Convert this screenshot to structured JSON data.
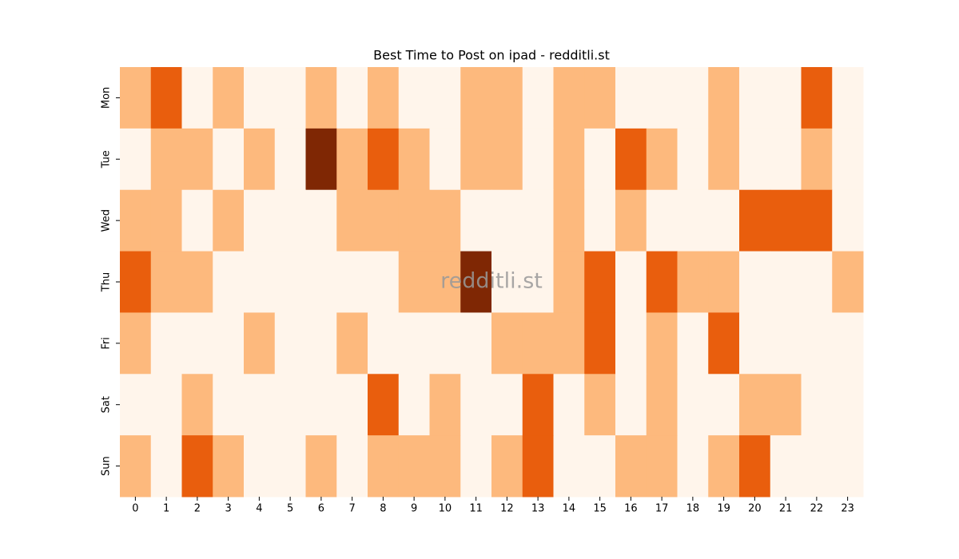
{
  "chart_data": {
    "type": "heatmap",
    "title": "Best Time to Post on ipad - redditli.st",
    "watermark": "redditli.st",
    "x_categories": [
      "0",
      "1",
      "2",
      "3",
      "4",
      "5",
      "6",
      "7",
      "8",
      "9",
      "10",
      "11",
      "12",
      "13",
      "14",
      "15",
      "16",
      "17",
      "18",
      "19",
      "20",
      "21",
      "22",
      "23"
    ],
    "y_categories": [
      "Mon",
      "Tue",
      "Wed",
      "Thu",
      "Fri",
      "Sat",
      "Sun"
    ],
    "values": [
      [
        1,
        2,
        0,
        1,
        0,
        0,
        1,
        0,
        1,
        0,
        0,
        1,
        1,
        0,
        1,
        1,
        0,
        0,
        0,
        1,
        0,
        0,
        2,
        0
      ],
      [
        0,
        1,
        1,
        0,
        1,
        0,
        3,
        1,
        2,
        1,
        0,
        1,
        1,
        0,
        1,
        0,
        2,
        1,
        0,
        1,
        0,
        0,
        1,
        0
      ],
      [
        1,
        1,
        0,
        1,
        0,
        0,
        0,
        1,
        1,
        1,
        1,
        0,
        0,
        0,
        1,
        0,
        1,
        0,
        0,
        0,
        2,
        2,
        2,
        0
      ],
      [
        2,
        1,
        1,
        0,
        0,
        0,
        0,
        0,
        0,
        1,
        1,
        3,
        0,
        0,
        1,
        2,
        0,
        2,
        1,
        1,
        0,
        0,
        0,
        1
      ],
      [
        1,
        0,
        0,
        0,
        1,
        0,
        0,
        1,
        0,
        0,
        0,
        0,
        1,
        1,
        1,
        2,
        0,
        1,
        0,
        2,
        0,
        0,
        0,
        0
      ],
      [
        0,
        0,
        1,
        0,
        0,
        0,
        0,
        0,
        2,
        0,
        1,
        0,
        0,
        2,
        0,
        1,
        0,
        1,
        0,
        0,
        1,
        1,
        0,
        0
      ],
      [
        1,
        0,
        2,
        1,
        0,
        0,
        1,
        0,
        1,
        1,
        1,
        0,
        1,
        2,
        0,
        0,
        1,
        1,
        0,
        1,
        2,
        0,
        0,
        0
      ]
    ],
    "colors": [
      "#fff5eb",
      "#fdb97d",
      "#e95e0d",
      "#7f2704"
    ]
  }
}
